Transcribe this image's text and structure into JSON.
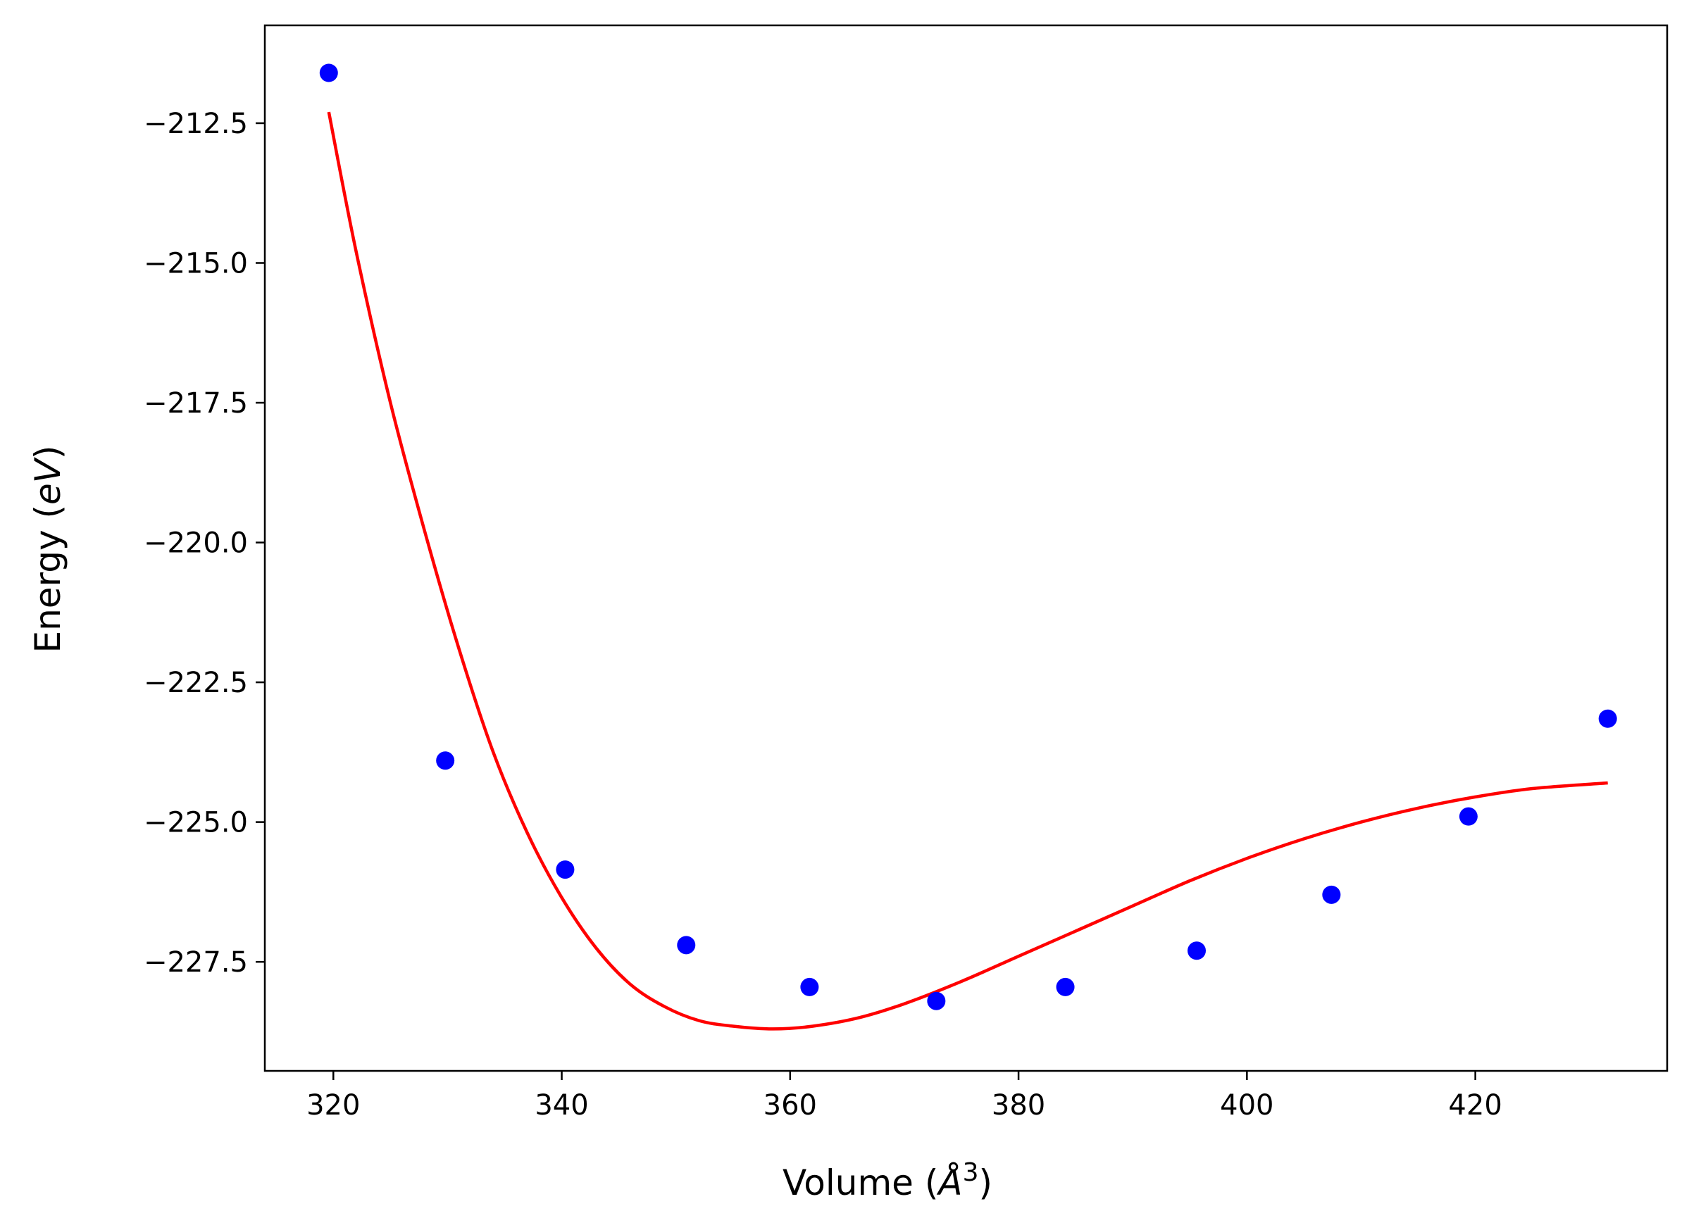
{
  "chart_data": {
    "type": "scatter",
    "xlabel": "Volume (Å³)",
    "ylabel": "Energy (eV)",
    "xlabel_parts": [
      "Volume (",
      "Å",
      "3",
      ")"
    ],
    "ylabel_parts": [
      "Energy (",
      "eV",
      ")"
    ],
    "xlim": [
      314.0,
      436.8
    ],
    "ylim": [
      -229.45,
      -210.75
    ],
    "xticks": [
      320,
      340,
      360,
      380,
      400,
      420
    ],
    "xtick_labels": [
      "320",
      "340",
      "360",
      "380",
      "400",
      "420"
    ],
    "yticks": [
      -212.5,
      -215.0,
      -217.5,
      -220.0,
      -222.5,
      -225.0,
      -227.5
    ],
    "ytick_labels": [
      "−212.5",
      "−215.0",
      "−217.5",
      "−220.0",
      "−222.5",
      "−225.0",
      "−227.5"
    ],
    "grid": false,
    "series": [
      {
        "kind": "scatter",
        "color": "#0000ff",
        "x": [
          319.6,
          329.8,
          340.3,
          350.9,
          361.7,
          372.8,
          384.1,
          395.6,
          407.4,
          419.4,
          431.6
        ],
        "y": [
          -211.6,
          -223.9,
          -225.85,
          -227.2,
          -227.95,
          -228.2,
          -227.95,
          -227.3,
          -226.3,
          -224.9,
          -223.15
        ]
      },
      {
        "kind": "line",
        "color": "#ff0000",
        "x": [
          319.6,
          322.0,
          325.0,
          328.0,
          331.0,
          334.0,
          337.0,
          340.0,
          343.0,
          346.0,
          349.0,
          352.0,
          355.0,
          358.5,
          362.0,
          366.0,
          370.0,
          375.0,
          380.0,
          385.0,
          390.0,
          395.0,
          400.0,
          405.0,
          410.0,
          415.0,
          420.0,
          425.0,
          431.6
        ],
        "y": [
          -212.3,
          -214.8,
          -217.5,
          -219.8,
          -221.9,
          -223.75,
          -225.2,
          -226.35,
          -227.25,
          -227.9,
          -228.3,
          -228.55,
          -228.65,
          -228.7,
          -228.65,
          -228.5,
          -228.25,
          -227.85,
          -227.4,
          -226.95,
          -226.5,
          -226.05,
          -225.65,
          -225.3,
          -225.0,
          -224.75,
          -224.55,
          -224.4,
          -224.3
        ]
      }
    ]
  }
}
